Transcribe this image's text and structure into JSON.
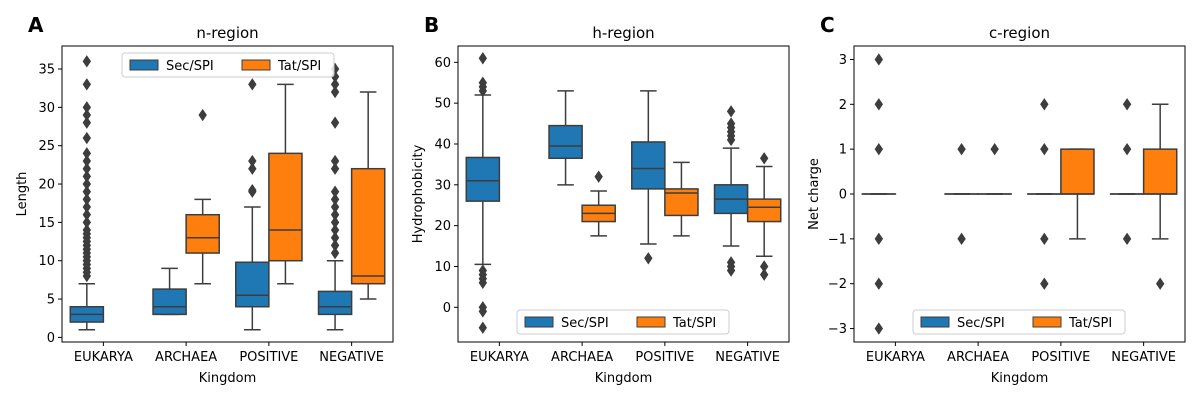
{
  "panels": [
    {
      "label": "A",
      "title": "n-region",
      "xlabel": "Kingdom",
      "ylabel": "Length",
      "legend": {
        "position": "upper center"
      }
    },
    {
      "label": "B",
      "title": "h-region",
      "xlabel": "Kingdom",
      "ylabel": "Hydrophobicity",
      "legend": {
        "position": "lower center"
      }
    },
    {
      "label": "C",
      "title": "c-region",
      "xlabel": "Kingdom",
      "ylabel": "Net charge",
      "legend": {
        "position": "lower center"
      }
    }
  ],
  "colors": {
    "sec": "#1f77b4",
    "tat": "#ff7f0e",
    "line": "#3d3d3d"
  },
  "chart_data": [
    {
      "type": "boxplot",
      "title": "n-region",
      "xlabel": "Kingdom",
      "ylabel": "Length",
      "categories": [
        "EUKARYA",
        "ARCHAEA",
        "POSITIVE",
        "NEGATIVE"
      ],
      "ylim": [
        -0.6,
        38
      ],
      "yticks": [
        0,
        5,
        10,
        15,
        20,
        25,
        30,
        35
      ],
      "series": [
        {
          "name": "Sec/SPI",
          "boxes": [
            {
              "whislo": 1,
              "q1": 2,
              "med": 3,
              "q3": 4,
              "whishi": 7,
              "fliers": [
                8,
                8.5,
                9,
                9.5,
                10,
                10.5,
                11,
                11.5,
                12,
                12.5,
                13,
                13.5,
                14,
                15,
                16,
                17,
                18,
                19,
                20,
                21,
                22,
                23,
                24,
                26,
                28,
                29,
                30,
                33,
                36
              ]
            },
            {
              "whislo": 3,
              "q1": 3,
              "med": 4,
              "q3": 6.3,
              "whishi": 9,
              "fliers": []
            },
            {
              "whislo": 1,
              "q1": 4,
              "med": 5.5,
              "q3": 9.8,
              "whishi": 17,
              "fliers": [
                19,
                19.2,
                22,
                23,
                33
              ]
            },
            {
              "whislo": 1,
              "q1": 3,
              "med": 4,
              "q3": 6,
              "whishi": 10,
              "fliers": [
                11,
                12,
                13,
                14,
                15,
                16,
                17,
                18,
                19,
                22,
                23,
                28,
                32,
                33,
                34,
                35
              ]
            }
          ]
        },
        {
          "name": "Tat/SPI",
          "boxes": [
            null,
            {
              "whislo": 7,
              "q1": 11,
              "med": 13,
              "q3": 16,
              "whishi": 18,
              "fliers": [
                29
              ]
            },
            {
              "whislo": 7,
              "q1": 10,
              "med": 14,
              "q3": 24,
              "whishi": 33,
              "fliers": []
            },
            {
              "whislo": 5,
              "q1": 7,
              "med": 8,
              "q3": 22,
              "whishi": 32,
              "fliers": []
            }
          ]
        }
      ]
    },
    {
      "type": "boxplot",
      "title": "h-region",
      "xlabel": "Kingdom",
      "ylabel": "Hydrophobicity",
      "categories": [
        "EUKARYA",
        "ARCHAEA",
        "POSITIVE",
        "NEGATIVE"
      ],
      "ylim": [
        -8.5,
        64
      ],
      "yticks": [
        0,
        10,
        20,
        30,
        40,
        50,
        60
      ],
      "series": [
        {
          "name": "Sec/SPI",
          "boxes": [
            {
              "whislo": 10.5,
              "q1": 26,
              "med": 31,
              "q3": 36.7,
              "whishi": 52,
              "fliers": [
                -5,
                -1,
                0,
                6,
                7,
                8,
                9,
                53,
                54,
                55,
                61
              ]
            },
            {
              "whislo": 30,
              "q1": 36.5,
              "med": 39.5,
              "q3": 44.5,
              "whishi": 53,
              "fliers": []
            },
            {
              "whislo": 15.5,
              "q1": 29,
              "med": 34,
              "q3": 40.5,
              "whishi": 53,
              "fliers": [
                12
              ]
            },
            {
              "whislo": 15,
              "q1": 23,
              "med": 26.5,
              "q3": 30,
              "whishi": 39,
              "fliers": [
                9,
                10,
                11,
                41,
                42,
                43,
                44,
                45,
                48
              ]
            }
          ]
        },
        {
          "name": "Tat/SPI",
          "boxes": [
            null,
            {
              "whislo": 17.5,
              "q1": 21,
              "med": 23,
              "q3": 25,
              "whishi": 28.5,
              "fliers": [
                32
              ]
            },
            {
              "whislo": 17.5,
              "q1": 22.5,
              "med": 28,
              "q3": 29,
              "whishi": 35.5,
              "fliers": []
            },
            {
              "whislo": 12.5,
              "q1": 21,
              "med": 24.5,
              "q3": 26.5,
              "whishi": 34.5,
              "fliers": [
                8,
                10,
                36.5
              ]
            }
          ]
        }
      ]
    },
    {
      "type": "boxplot",
      "title": "c-region",
      "xlabel": "Kingdom",
      "ylabel": "Net charge",
      "categories": [
        "EUKARYA",
        "ARCHAEA",
        "POSITIVE",
        "NEGATIVE"
      ],
      "ylim": [
        -3.3,
        3.3
      ],
      "yticks": [
        -3,
        -2,
        -1,
        0,
        1,
        2,
        3
      ],
      "series": [
        {
          "name": "Sec/SPI",
          "boxes": [
            {
              "whislo": 0,
              "q1": 0,
              "med": 0,
              "q3": 0,
              "whishi": 0,
              "fliers": [
                -3,
                -2,
                -1,
                1,
                2,
                3
              ]
            },
            {
              "whislo": 0,
              "q1": 0,
              "med": 0,
              "q3": 0,
              "whishi": 0,
              "fliers": [
                -1,
                1
              ]
            },
            {
              "whislo": 0,
              "q1": 0,
              "med": 0,
              "q3": 0,
              "whishi": 0,
              "fliers": [
                -2,
                -1,
                1,
                2
              ]
            },
            {
              "whislo": 0,
              "q1": 0,
              "med": 0,
              "q3": 0,
              "whishi": 0,
              "fliers": [
                -1,
                1,
                2
              ]
            }
          ]
        },
        {
          "name": "Tat/SPI",
          "boxes": [
            null,
            {
              "whislo": 0,
              "q1": 0,
              "med": 0,
              "q3": 0,
              "whishi": 0,
              "fliers": [
                1
              ]
            },
            {
              "whislo": -1,
              "q1": 0,
              "med": 0,
              "q3": 1,
              "whishi": 1,
              "fliers": []
            },
            {
              "whislo": -1,
              "q1": 0,
              "med": 0,
              "q3": 1,
              "whishi": 2,
              "fliers": [
                -2
              ]
            }
          ]
        }
      ]
    }
  ]
}
